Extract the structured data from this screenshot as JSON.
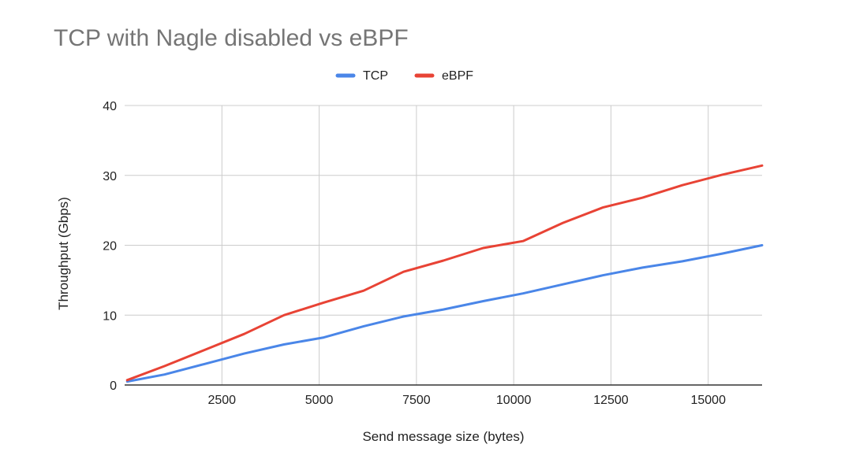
{
  "chart_data": {
    "type": "line",
    "title": "TCP with Nagle disabled vs eBPF",
    "xlabel": "Send message size (bytes)",
    "ylabel": "Throughput (Gbps)",
    "xlim": [
      0,
      16384
    ],
    "ylim": [
      0,
      40
    ],
    "x_ticks": [
      2500,
      5000,
      7500,
      10000,
      12500,
      15000
    ],
    "y_ticks": [
      0,
      10,
      20,
      30,
      40
    ],
    "grid": true,
    "legend": "top-center",
    "series": [
      {
        "name": "TCP",
        "color": "#4a86e8",
        "x": [
          64,
          1024,
          2048,
          3072,
          4096,
          5120,
          6144,
          7168,
          8192,
          9216,
          10240,
          11264,
          12288,
          13312,
          14336,
          15360,
          16384
        ],
        "values": [
          0.5,
          1.5,
          3.0,
          4.5,
          5.8,
          6.8,
          8.4,
          9.8,
          10.8,
          12.0,
          13.1,
          14.4,
          15.7,
          16.8,
          17.7,
          18.8,
          20.0
        ]
      },
      {
        "name": "eBPF",
        "color": "#e84335",
        "x": [
          64,
          1024,
          2048,
          3072,
          4096,
          5120,
          6144,
          7168,
          8192,
          9216,
          10240,
          11264,
          12288,
          13312,
          14336,
          15360,
          16384
        ],
        "values": [
          0.7,
          2.7,
          5.0,
          7.3,
          10.0,
          11.8,
          13.5,
          16.2,
          17.8,
          19.6,
          20.6,
          23.2,
          25.4,
          26.8,
          28.6,
          30.1,
          31.4
        ]
      }
    ]
  }
}
